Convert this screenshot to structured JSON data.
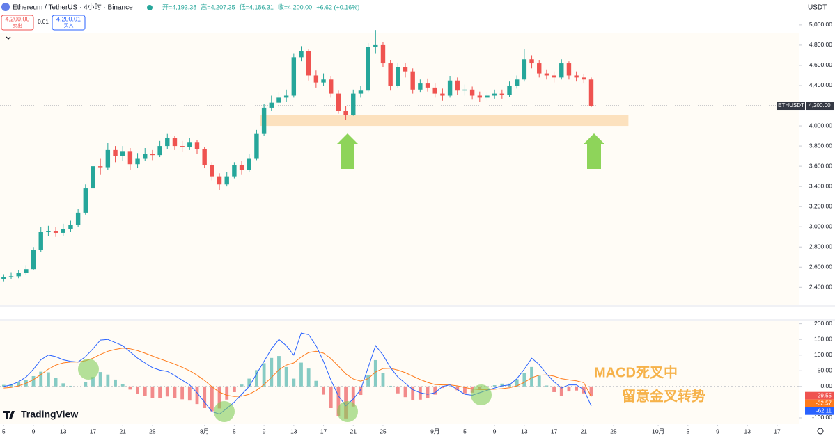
{
  "header": {
    "symbol": "Ethereum / TetherUS · 4小时 · Binance",
    "ohlc": [
      "开=4,193.38",
      "高=4,207.35",
      "低=4,186.31",
      "收=4,200.00",
      "+6.62 (+0.16%)"
    ],
    "sell_price": "4,200.00",
    "sell_label": "卖出",
    "spread": "0.01",
    "buy_price": "4,200.01",
    "buy_label": "买入",
    "currency": "USDT"
  },
  "annotation": [
    "MACD死叉中",
    "留意金叉转势"
  ],
  "logo": "TradingView",
  "chart_data": [
    {
      "type": "candlestick",
      "up_color": "#26a69a",
      "down_color": "#ef5350",
      "x": [
        0,
        1,
        2,
        3,
        4,
        5,
        6,
        7,
        8,
        9,
        10,
        11,
        12,
        13,
        14,
        15,
        16,
        17,
        18,
        19,
        20,
        21,
        22,
        23,
        24,
        25,
        26,
        27,
        28,
        29,
        30,
        31,
        32,
        33,
        34,
        35,
        36,
        37,
        38,
        39,
        40,
        41,
        42,
        43,
        44,
        45,
        46,
        47,
        48,
        49,
        50,
        51,
        52,
        53,
        54,
        55,
        56,
        57,
        58,
        59,
        60,
        61,
        62,
        63,
        64,
        65,
        66,
        67,
        68,
        69,
        70,
        71,
        72,
        73,
        74,
        75,
        76,
        77,
        78,
        79
      ],
      "open": [
        2480,
        2500,
        2510,
        2540,
        2580,
        2770,
        2950,
        2960,
        2940,
        2980,
        3020,
        3140,
        3380,
        3600,
        3590,
        3760,
        3700,
        3750,
        3620,
        3680,
        3720,
        3710,
        3800,
        3880,
        3800,
        3790,
        3840,
        3770,
        3610,
        3500,
        3420,
        3500,
        3610,
        3560,
        3680,
        3920,
        4180,
        4230,
        4280,
        4300,
        4680,
        4740,
        4500,
        4430,
        4460,
        4320,
        4150,
        4110,
        4320,
        4350,
        4780,
        4800,
        4620,
        4400,
        4580,
        4540,
        4360,
        4420,
        4380,
        4320,
        4300,
        4450,
        4350,
        4360,
        4300,
        4280,
        4300,
        4320,
        4310,
        4400,
        4460,
        4660,
        4620,
        4520,
        4500,
        4480,
        4620,
        4500,
        4480,
        4460
      ],
      "high": [
        2530,
        2550,
        2570,
        2620,
        2800,
        3000,
        3010,
        3000,
        3030,
        3060,
        3180,
        3420,
        3650,
        3680,
        3830,
        3800,
        3800,
        3780,
        3730,
        3780,
        3760,
        3850,
        3920,
        3900,
        3850,
        3880,
        3860,
        3790,
        3640,
        3530,
        3540,
        3640,
        3650,
        3720,
        3960,
        4220,
        4300,
        4330,
        4360,
        4720,
        4790,
        4760,
        4550,
        4520,
        4490,
        4350,
        4200,
        4360,
        4400,
        4820,
        4950,
        4830,
        4650,
        4620,
        4620,
        4570,
        4460,
        4470,
        4420,
        4370,
        4490,
        4480,
        4410,
        4390,
        4340,
        4340,
        4360,
        4360,
        4440,
        4500,
        4760,
        4700,
        4650,
        4560,
        4540,
        4660,
        4640,
        4540,
        4510,
        4480
      ],
      "low": [
        2460,
        2480,
        2490,
        2520,
        2570,
        2750,
        2910,
        2900,
        2910,
        2950,
        3000,
        3120,
        3360,
        3520,
        3560,
        3640,
        3650,
        3560,
        3580,
        3650,
        3660,
        3690,
        3770,
        3760,
        3740,
        3760,
        3720,
        3580,
        3460,
        3360,
        3400,
        3480,
        3520,
        3540,
        3660,
        3900,
        4150,
        4180,
        4240,
        4280,
        4640,
        4450,
        4380,
        4400,
        4280,
        4120,
        4060,
        4100,
        4280,
        4330,
        4720,
        4580,
        4350,
        4380,
        4480,
        4320,
        4330,
        4340,
        4280,
        4250,
        4280,
        4310,
        4300,
        4260,
        4240,
        4250,
        4270,
        4270,
        4290,
        4370,
        4440,
        4570,
        4480,
        4460,
        4430,
        4460,
        4460,
        4440,
        4420,
        4186
      ],
      "close": [
        2500,
        2510,
        2540,
        2580,
        2770,
        2950,
        2960,
        2940,
        2980,
        3020,
        3140,
        3380,
        3600,
        3590,
        3760,
        3700,
        3750,
        3620,
        3680,
        3720,
        3710,
        3800,
        3880,
        3800,
        3790,
        3840,
        3770,
        3610,
        3500,
        3420,
        3500,
        3610,
        3560,
        3680,
        3920,
        4180,
        4230,
        4280,
        4300,
        4680,
        4740,
        4500,
        4430,
        4460,
        4320,
        4150,
        4110,
        4320,
        4350,
        4780,
        4800,
        4620,
        4400,
        4580,
        4540,
        4360,
        4420,
        4380,
        4320,
        4300,
        4450,
        4350,
        4360,
        4300,
        4280,
        4300,
        4320,
        4310,
        4400,
        4460,
        4660,
        4620,
        4520,
        4500,
        4480,
        4620,
        4500,
        4480,
        4460,
        4200
      ],
      "xlim": [
        -0.5,
        107
      ],
      "ylim": [
        2230,
        5075
      ],
      "yticks": [
        {
          "value": 2400,
          "label": "2,400.00"
        },
        {
          "value": 2600,
          "label": "2,600.00"
        },
        {
          "value": 2800,
          "label": "2,800.00"
        },
        {
          "value": 3000,
          "label": "3,000.00"
        },
        {
          "value": 3200,
          "label": "3,200.00"
        },
        {
          "value": 3400,
          "label": "3,400.00"
        },
        {
          "value": 3600,
          "label": "3,600.00"
        },
        {
          "value": 3800,
          "label": "3,800.00"
        },
        {
          "value": 4000,
          "label": "4,000.00"
        },
        {
          "value": 4200,
          "label": "4,200.00"
        },
        {
          "value": 4400,
          "label": "4,400.00"
        },
        {
          "value": 4600,
          "label": "4,600.00"
        },
        {
          "value": 4800,
          "label": "4,800.00"
        },
        {
          "value": 5000,
          "label": "5,000.00"
        }
      ],
      "xticks": [
        {
          "value": 0,
          "label": "5"
        },
        {
          "value": 4,
          "label": "9"
        },
        {
          "value": 8,
          "label": "13"
        },
        {
          "value": 12,
          "label": "17"
        },
        {
          "value": 16,
          "label": "21"
        },
        {
          "value": 20,
          "label": "25"
        },
        {
          "value": 27,
          "label": "8月"
        },
        {
          "value": 31,
          "label": "5"
        },
        {
          "value": 35,
          "label": "9"
        },
        {
          "value": 39,
          "label": "13"
        },
        {
          "value": 43,
          "label": "17"
        },
        {
          "value": 47,
          "label": "21"
        },
        {
          "value": 51,
          "label": "25"
        },
        {
          "value": 58,
          "label": "9月"
        },
        {
          "value": 62,
          "label": "5"
        },
        {
          "value": 66,
          "label": "9"
        },
        {
          "value": 70,
          "label": "13"
        },
        {
          "value": 74,
          "label": "17"
        },
        {
          "value": 78,
          "label": "21"
        },
        {
          "value": 82,
          "label": "25"
        },
        {
          "value": 88,
          "label": "10月"
        },
        {
          "value": 92,
          "label": "5"
        },
        {
          "value": 96,
          "label": "9"
        },
        {
          "value": 100,
          "label": "13"
        },
        {
          "value": 104,
          "label": "17"
        }
      ],
      "last_price": {
        "name": "ETHUSDT",
        "value": 4200,
        "label": "4,200.00",
        "color": "#363a45"
      },
      "zones": [
        {
          "x": [
            34.5,
            84
          ],
          "y": [
            4000,
            4110
          ],
          "color": "#fbdcb4"
        }
      ]
    },
    {
      "type": "macd",
      "x": [
        0,
        1,
        2,
        3,
        4,
        5,
        6,
        7,
        8,
        9,
        10,
        11,
        12,
        13,
        14,
        15,
        16,
        17,
        18,
        19,
        20,
        21,
        22,
        23,
        24,
        25,
        26,
        27,
        28,
        29,
        30,
        31,
        32,
        33,
        34,
        35,
        36,
        37,
        38,
        39,
        40,
        41,
        42,
        43,
        44,
        45,
        46,
        47,
        48,
        49,
        50,
        51,
        52,
        53,
        54,
        55,
        56,
        57,
        58,
        59,
        60,
        61,
        62,
        63,
        64,
        65,
        66,
        67,
        68,
        69,
        70,
        71,
        72,
        73,
        74,
        75,
        76,
        77,
        78,
        79
      ],
      "xlim": [
        -0.5,
        107
      ],
      "ylim": [
        -120,
        208
      ],
      "yticks": [
        {
          "value": -100,
          "label": "-100.00"
        },
        {
          "value": 0,
          "label": "0.00"
        },
        {
          "value": 50,
          "label": "50.00"
        },
        {
          "value": 100,
          "label": "100.00"
        },
        {
          "value": 150,
          "label": "150.00"
        },
        {
          "value": 200,
          "label": "200.00"
        }
      ],
      "histogram": {
        "up_color": "#86cbc4",
        "down_color": "#f28b8b",
        "tag_color": "#ef5350",
        "values": [
          5,
          8,
          13,
          20,
          33,
          47,
          45,
          27,
          10,
          2,
          0,
          13,
          30,
          46,
          38,
          22,
          8,
          -10,
          -24,
          -31,
          -37,
          -36,
          -32,
          -36,
          -41,
          -45,
          -56,
          -69,
          -79,
          -70,
          -42,
          -18,
          6,
          25,
          52,
          74,
          91,
          97,
          62,
          25,
          76,
          57,
          18,
          -26,
          -69,
          -95,
          -102,
          -64,
          -27,
          35,
          84,
          43,
          2,
          -22,
          -34,
          -43,
          -42,
          -38,
          -26,
          -5,
          0,
          -12,
          -22,
          -20,
          -10,
          -2,
          4,
          9,
          9,
          23,
          42,
          62,
          34,
          3,
          -18,
          -30,
          -16,
          -13,
          -22,
          -29.55
        ],
        "last_label": "-29.55"
      },
      "series": [
        {
          "color": "#ff7a1a",
          "values": [
            -5,
            -3,
            2,
            10,
            22,
            38,
            55,
            68,
            75,
            78,
            78,
            82,
            90,
            102,
            112,
            118,
            122,
            120,
            114,
            106,
            97,
            88,
            80,
            71,
            61,
            50,
            36,
            19,
            -1,
            -18,
            -28,
            -32,
            -31,
            -25,
            -12,
            6,
            29,
            53,
            68,
            75,
            94,
            108,
            112,
            106,
            89,
            65,
            40,
            24,
            17,
            25,
            46,
            57,
            58,
            52,
            44,
            33,
            22,
            13,
            6,
            5,
            5,
            2,
            -3,
            -8,
            -10,
            -10,
            -9,
            -7,
            -4,
            2,
            13,
            28,
            36,
            37,
            33,
            25,
            21,
            18,
            12,
            -32.57
          ],
          "last_label": "-32.57"
        },
        {
          "color": "#2962ff",
          "values": [
            0,
            5,
            15,
            30,
            55,
            85,
            100,
            95,
            85,
            80,
            78,
            95,
            120,
            148,
            150,
            140,
            130,
            110,
            90,
            75,
            60,
            52,
            48,
            35,
            20,
            5,
            -20,
            -50,
            -80,
            -88,
            -70,
            -50,
            -25,
            0,
            40,
            80,
            120,
            150,
            130,
            100,
            170,
            165,
            130,
            80,
            20,
            -30,
            -62,
            -40,
            -10,
            60,
            130,
            100,
            60,
            30,
            10,
            -10,
            -20,
            -25,
            -20,
            0,
            5,
            -10,
            -25,
            -28,
            -20,
            -12,
            -5,
            2,
            5,
            25,
            55,
            90,
            70,
            40,
            15,
            -5,
            5,
            5,
            -10,
            -62.11
          ],
          "last_label": "-62.11"
        }
      ]
    }
  ]
}
